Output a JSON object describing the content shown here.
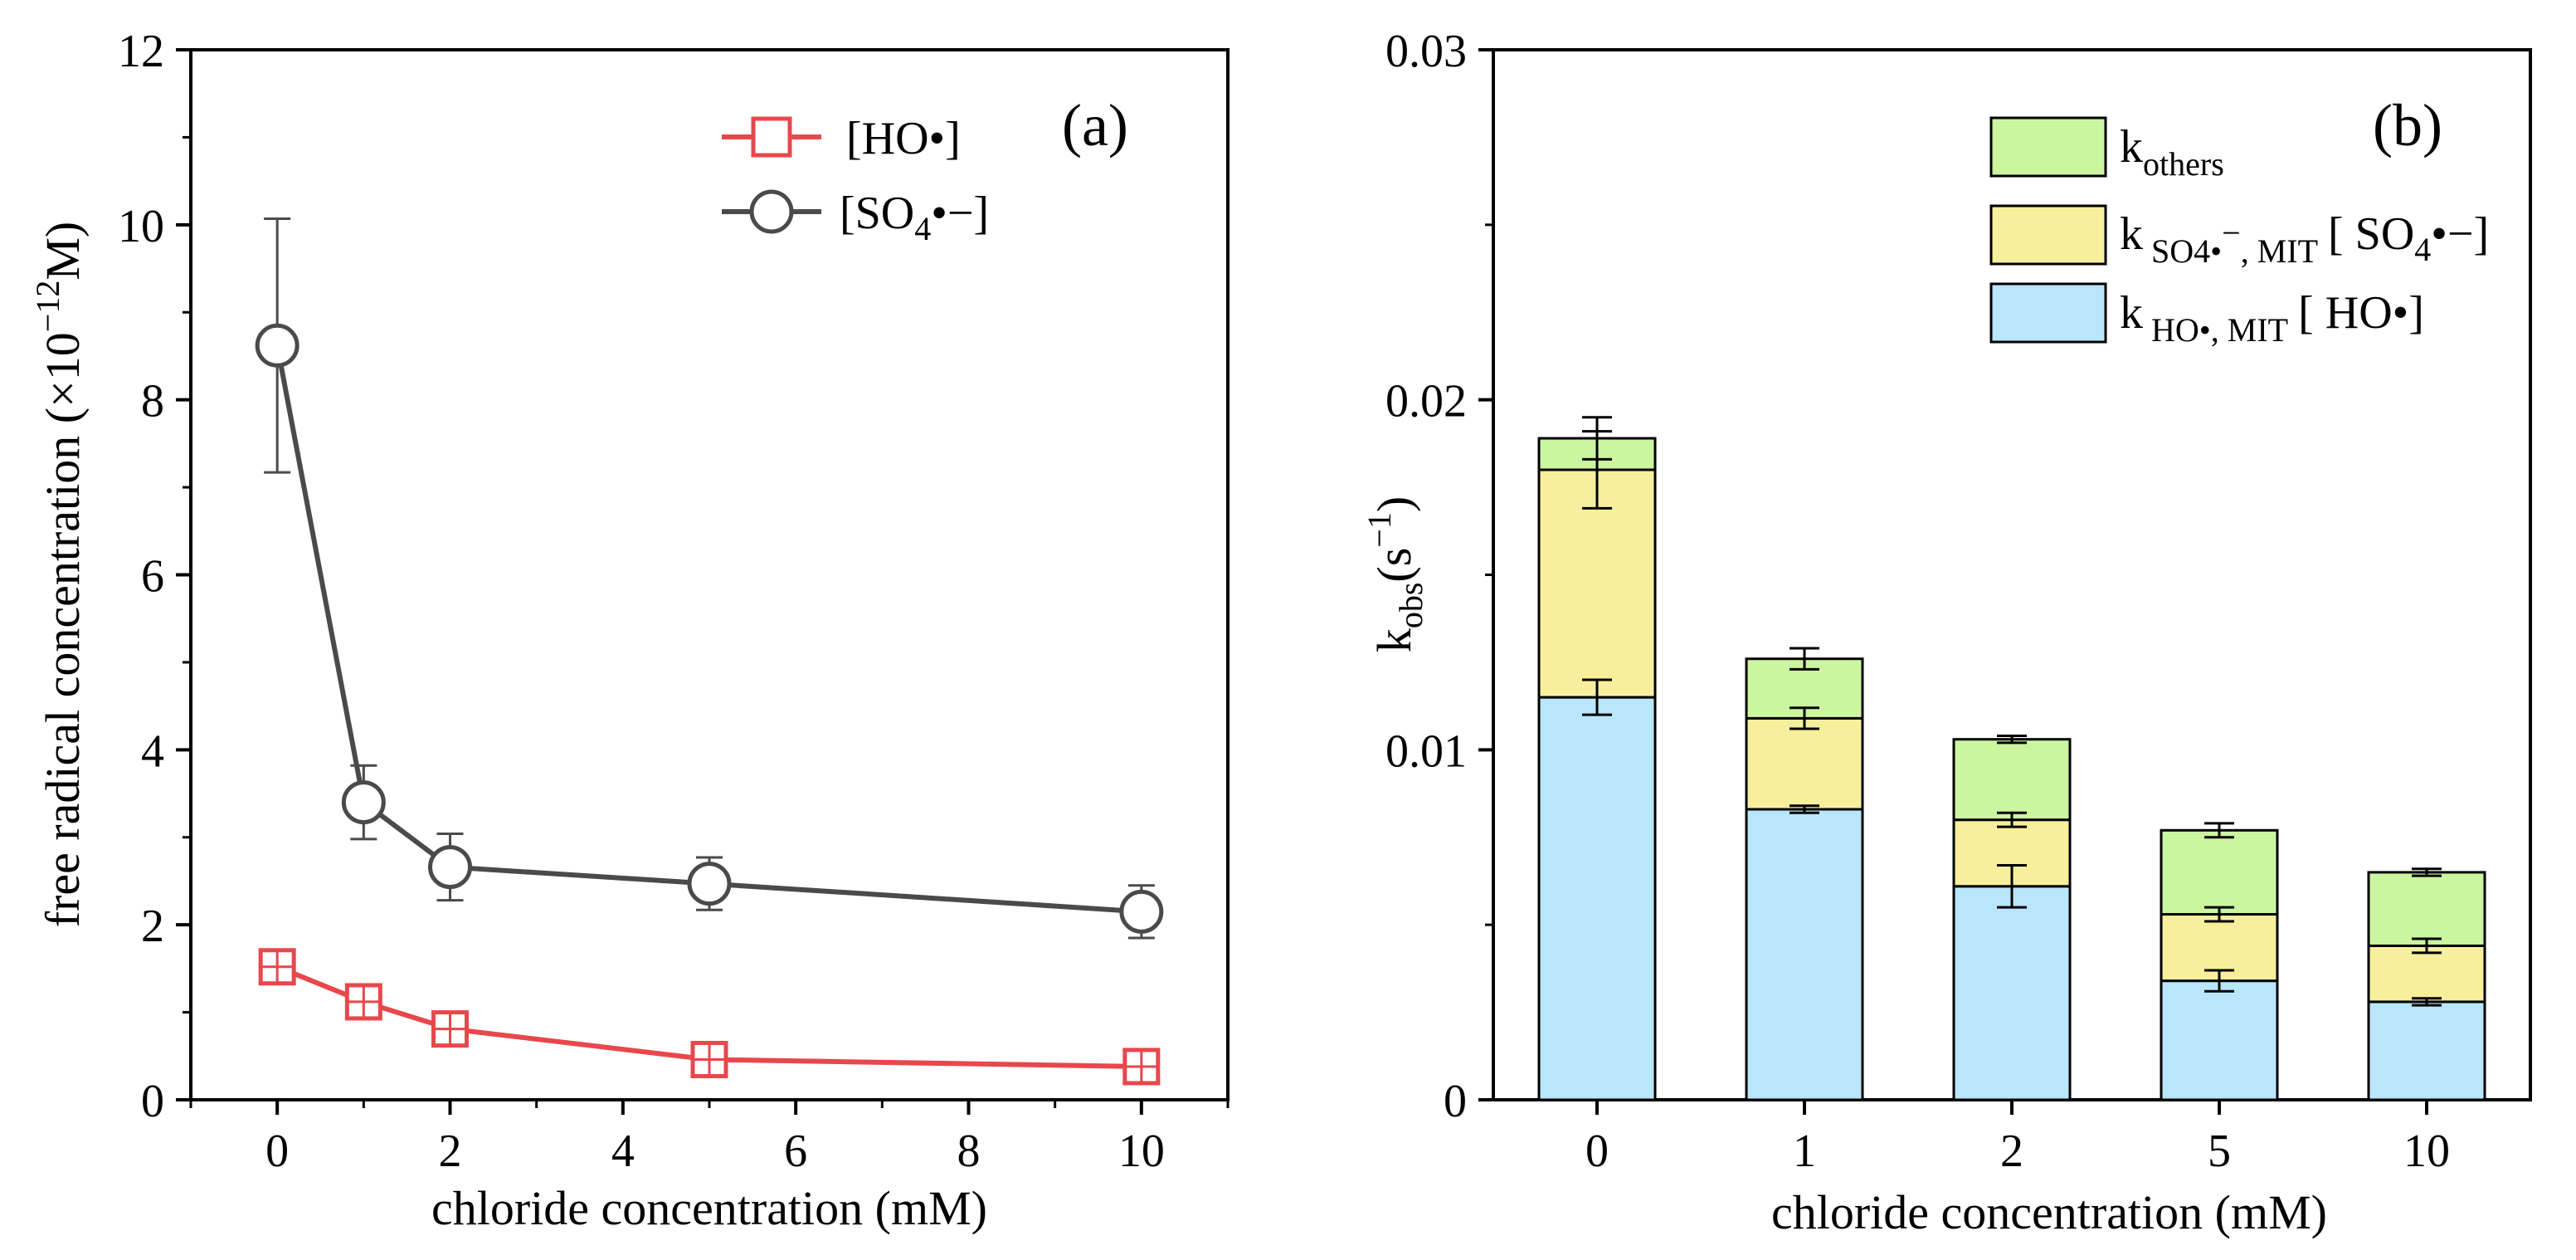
{
  "chart_data": [
    {
      "panel_label": "(a)",
      "type": "line",
      "xlabel": "chloride concentration (mM)",
      "ylabel": "free radical concentration (×10",
      "ylabel_exponent": "−12",
      "ylabel_unit": "M)",
      "xlim": [
        -1,
        11
      ],
      "ylim": [
        0,
        12
      ],
      "x_ticks": [
        "0",
        "2",
        "4",
        "6",
        "8",
        "10"
      ],
      "y_ticks": [
        "0",
        "2",
        "4",
        "6",
        "8",
        "10",
        "12"
      ],
      "legend_position": "top-right",
      "x": [
        0,
        1,
        2,
        5,
        10
      ],
      "series": [
        {
          "name": "[HO•]",
          "legend_text": "[HO•]",
          "marker": "square",
          "color": "#e8474c",
          "values": [
            1.52,
            1.12,
            0.81,
            0.46,
            0.38
          ],
          "errors": [
            0.1,
            0.1,
            0.1,
            0.08,
            0.08
          ]
        },
        {
          "name": "[SO4•−]",
          "legend_text_main": "[SO",
          "legend_text_sub": "4",
          "legend_text_end": "•−]",
          "marker": "circle",
          "color": "#4a4a4a",
          "values": [
            8.62,
            3.4,
            2.66,
            2.47,
            2.15
          ],
          "errors": [
            1.45,
            0.42,
            0.38,
            0.3,
            0.3
          ]
        }
      ]
    },
    {
      "panel_label": "(b)",
      "type": "bar",
      "stacked": true,
      "xlabel": "chloride concentration (mM)",
      "ylabel_main": "k",
      "ylabel_sub": "obs",
      "ylabel_unit_open": "(s",
      "ylabel_unit_exp": "−1",
      "ylabel_unit_close": ")",
      "categories": [
        "0",
        "1",
        "2",
        "5",
        "10"
      ],
      "ylim": [
        0,
        0.03
      ],
      "y_ticks": [
        "0",
        "0.01",
        "0.02",
        "0.03"
      ],
      "legend_position": "top-right",
      "series": [
        {
          "name": "k HO•, MIT [HO•]",
          "legend_main": "k",
          "legend_sub": "HO•, MIT",
          "legend_tail": "[ HO•]",
          "color": "#b9e6fa",
          "values": [
            0.0115,
            0.0083,
            0.0061,
            0.0034,
            0.0028
          ],
          "errors": [
            0.0005,
            0.0001,
            0.0006,
            0.0003,
            0.0001
          ]
        },
        {
          "name": "k SO4•−, MIT [SO4•−]",
          "legend_main": "k",
          "legend_sub": "SO4•",
          "legend_sub_sup": "−",
          "legend_sub_tail": ", MIT",
          "legend_tail_a": "[ SO",
          "legend_tail_sub": "4",
          "legend_tail_b": "•−]",
          "color": "#f7ef9c",
          "values": [
            0.0065,
            0.0026,
            0.0019,
            0.0019,
            0.0016
          ],
          "errors": [
            0.0011,
            0.0003,
            0.0002,
            0.0002,
            0.0002
          ]
        },
        {
          "name": "k others",
          "legend_main": "k",
          "legend_sub": "others",
          "color": "#ccf5a0",
          "values": [
            0.0009,
            0.0017,
            0.0023,
            0.0024,
            0.0021
          ],
          "errors": [
            0.0006,
            0.0003,
            0.0001,
            0.0002,
            0.0001
          ]
        }
      ]
    }
  ]
}
